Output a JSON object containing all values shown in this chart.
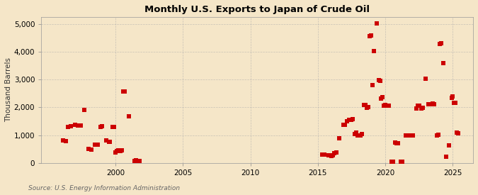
{
  "title": "Monthly U.S. Exports to Japan of Crude Oil",
  "ylabel": "Thousand Barrels",
  "source": "Source: U.S. Energy Information Administration",
  "background_color": "#f5e6c8",
  "plot_background_color": "#f5e6c8",
  "marker_color": "#cc0000",
  "marker_size": 4,
  "xlim": [
    1994.5,
    2026.5
  ],
  "ylim": [
    0,
    5250
  ],
  "yticks": [
    0,
    1000,
    2000,
    3000,
    4000,
    5000
  ],
  "xticks": [
    2000,
    2005,
    2010,
    2015,
    2020,
    2025
  ],
  "grid_color": "#aaaaaa",
  "data": [
    [
      1996.1,
      800
    ],
    [
      1996.3,
      780
    ],
    [
      1996.5,
      1300
    ],
    [
      1996.7,
      1320
    ],
    [
      1997.0,
      1370
    ],
    [
      1997.2,
      1340
    ],
    [
      1997.4,
      1350
    ],
    [
      1997.7,
      1900
    ],
    [
      1998.0,
      500
    ],
    [
      1998.2,
      470
    ],
    [
      1998.5,
      650
    ],
    [
      1998.7,
      670
    ],
    [
      1998.9,
      1290
    ],
    [
      1999.0,
      1310
    ],
    [
      1999.3,
      800
    ],
    [
      1999.5,
      750
    ],
    [
      1999.6,
      760
    ],
    [
      1999.8,
      1290
    ],
    [
      1999.9,
      1290
    ],
    [
      2000.0,
      380
    ],
    [
      2000.1,
      420
    ],
    [
      2000.2,
      450
    ],
    [
      2000.35,
      420
    ],
    [
      2000.45,
      450
    ],
    [
      2000.6,
      2560
    ],
    [
      2000.7,
      2570
    ],
    [
      2001.0,
      1680
    ],
    [
      2001.4,
      80
    ],
    [
      2001.5,
      100
    ],
    [
      2001.7,
      80
    ],
    [
      2001.8,
      60
    ],
    [
      2015.3,
      310
    ],
    [
      2015.5,
      300
    ],
    [
      2015.8,
      280
    ],
    [
      2016.0,
      250
    ],
    [
      2016.1,
      270
    ],
    [
      2016.2,
      350
    ],
    [
      2016.35,
      370
    ],
    [
      2016.6,
      890
    ],
    [
      2016.9,
      1380
    ],
    [
      2017.0,
      1360
    ],
    [
      2017.15,
      1500
    ],
    [
      2017.3,
      1550
    ],
    [
      2017.45,
      1550
    ],
    [
      2017.6,
      1580
    ],
    [
      2017.75,
      1050
    ],
    [
      2017.85,
      1080
    ],
    [
      2017.95,
      990
    ],
    [
      2018.05,
      1000
    ],
    [
      2018.15,
      1000
    ],
    [
      2018.25,
      1050
    ],
    [
      2018.4,
      2080
    ],
    [
      2018.5,
      2080
    ],
    [
      2018.65,
      1980
    ],
    [
      2018.75,
      2020
    ],
    [
      2018.85,
      4560
    ],
    [
      2018.95,
      4580
    ],
    [
      2019.05,
      2800
    ],
    [
      2019.15,
      4020
    ],
    [
      2019.35,
      5020
    ],
    [
      2019.5,
      2980
    ],
    [
      2019.6,
      2960
    ],
    [
      2019.7,
      2320
    ],
    [
      2019.8,
      2360
    ],
    [
      2019.9,
      2060
    ],
    [
      2020.0,
      2080
    ],
    [
      2020.15,
      2070
    ],
    [
      2020.25,
      2050
    ],
    [
      2020.45,
      50
    ],
    [
      2020.55,
      40
    ],
    [
      2020.75,
      730
    ],
    [
      2020.85,
      710
    ],
    [
      2020.95,
      700
    ],
    [
      2021.15,
      50
    ],
    [
      2021.25,
      40
    ],
    [
      2021.5,
      990
    ],
    [
      2021.6,
      1000
    ],
    [
      2021.75,
      1000
    ],
    [
      2021.85,
      990
    ],
    [
      2021.95,
      1000
    ],
    [
      2022.05,
      990
    ],
    [
      2022.3,
      1970
    ],
    [
      2022.4,
      2050
    ],
    [
      2022.5,
      2050
    ],
    [
      2022.65,
      1960
    ],
    [
      2022.75,
      1990
    ],
    [
      2023.0,
      3020
    ],
    [
      2023.2,
      2100
    ],
    [
      2023.3,
      2120
    ],
    [
      2023.5,
      2130
    ],
    [
      2023.6,
      2100
    ],
    [
      2023.8,
      1000
    ],
    [
      2023.9,
      1020
    ],
    [
      2024.05,
      4280
    ],
    [
      2024.15,
      4300
    ],
    [
      2024.3,
      3600
    ],
    [
      2024.5,
      220
    ],
    [
      2024.7,
      620
    ],
    [
      2024.9,
      2350
    ],
    [
      2025.0,
      2380
    ],
    [
      2025.1,
      2160
    ],
    [
      2025.2,
      2170
    ],
    [
      2025.3,
      1080
    ],
    [
      2025.4,
      1060
    ]
  ]
}
